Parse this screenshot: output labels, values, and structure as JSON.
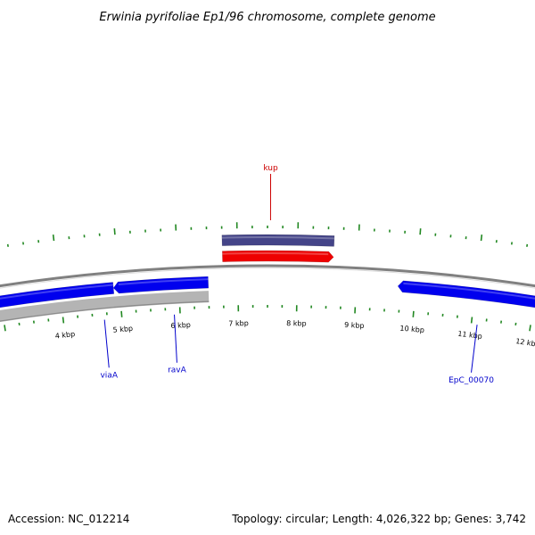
{
  "title": "Erwinia pyrifoliae Ep1/96 chromosome, complete genome",
  "footer": {
    "accession": "Accession: NC_012214",
    "summary": "Topology: circular; Length: 4,026,322 bp; Genes: 3,742"
  },
  "colors": {
    "backbone": "#808080",
    "forward_gene": "#0000ee",
    "reverse_gene": "#0000ee",
    "pseudo_track": "#b4b4b4",
    "highlight_gene": "#ee0000",
    "highlight_track": "#444488",
    "tick": "#228822",
    "label_blue": "#0000cc",
    "label_red": "#cc0000"
  },
  "chart_data": {
    "type": "genome-map",
    "scale_unit": "kbp",
    "scale_labels": [
      {
        "kbp": 4,
        "text": "4 kbp"
      },
      {
        "kbp": 5,
        "text": "5 kbp"
      },
      {
        "kbp": 6,
        "text": "6 kbp"
      },
      {
        "kbp": 7,
        "text": "7 kbp"
      },
      {
        "kbp": 8,
        "text": "8 kbp"
      },
      {
        "kbp": 9,
        "text": "9 kbp"
      },
      {
        "kbp": 10,
        "text": "10 kbp"
      },
      {
        "kbp": 11,
        "text": "11 kbp"
      },
      {
        "kbp": 12,
        "text": "12 kbp"
      }
    ],
    "genes": [
      {
        "name": "kup",
        "start_kbp": 6.75,
        "end_kbp": 8.6,
        "strand": "+",
        "color": "red",
        "track": "outer"
      },
      {
        "name": "",
        "start_kbp": 6.75,
        "end_kbp": 8.6,
        "strand": "none",
        "color": "navy",
        "track": "outer2"
      },
      {
        "name": "viaA",
        "start_kbp": 2.8,
        "end_kbp": 4.9,
        "strand": "-",
        "color": "blue",
        "track": "inner"
      },
      {
        "name": "ravA",
        "start_kbp": 4.9,
        "end_kbp": 6.5,
        "strand": "-",
        "color": "blue",
        "track": "inner"
      },
      {
        "name": "EpC_00070",
        "start_kbp": 9.7,
        "end_kbp": 13.5,
        "strand": "-",
        "color": "blue",
        "track": "inner"
      }
    ],
    "labeled_genes": [
      {
        "text": "viaA",
        "color": "blue"
      },
      {
        "text": "ravA",
        "color": "blue"
      },
      {
        "text": "kup",
        "color": "red"
      },
      {
        "text": "EpC_00070",
        "color": "blue"
      }
    ]
  }
}
